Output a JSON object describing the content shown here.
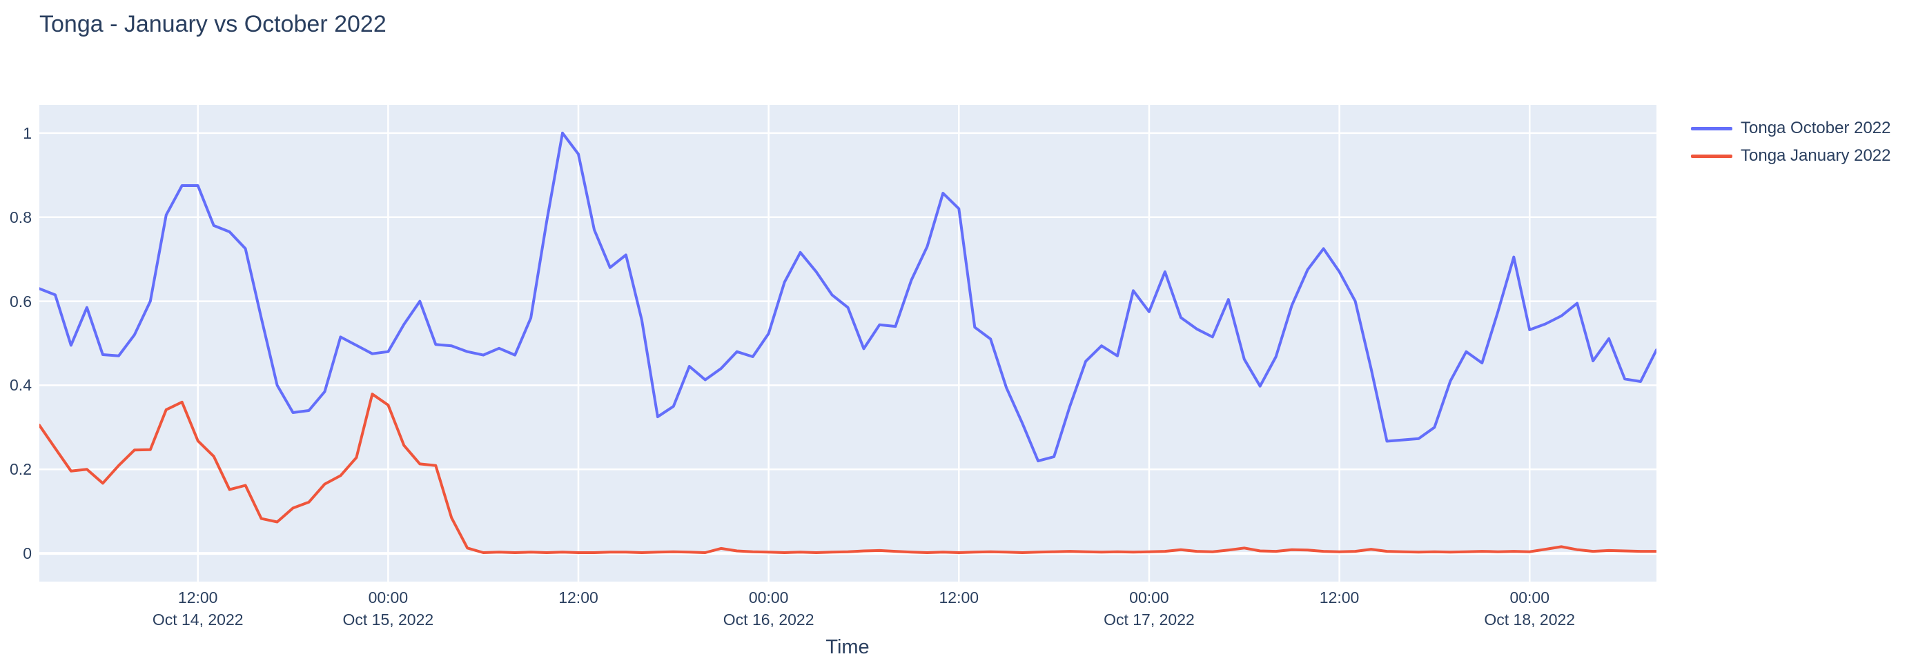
{
  "page": {
    "title": "Tonga - January vs October 2022"
  },
  "colors": {
    "october_line": "#636EFA",
    "january_line": "#EF553B",
    "plot_bg": "#E5ECF6",
    "grid": "#FFFFFF",
    "text": "#2A3F5F",
    "paper_bg": "#FFFFFF"
  },
  "legend": {
    "items": [
      {
        "label": "Tonga October 2022",
        "color": "#636EFA"
      },
      {
        "label": "Tonga January 2022",
        "color": "#EF553B"
      }
    ]
  },
  "x_axis": {
    "title": "Time",
    "ticks": [
      {
        "hour": 10,
        "time": "12:00",
        "date": "Oct 14, 2022"
      },
      {
        "hour": 22,
        "time": "00:00",
        "date": "Oct 15, 2022"
      },
      {
        "hour": 34,
        "time": "12:00",
        "date": ""
      },
      {
        "hour": 46,
        "time": "00:00",
        "date": "Oct 16, 2022"
      },
      {
        "hour": 58,
        "time": "12:00",
        "date": ""
      },
      {
        "hour": 70,
        "time": "00:00",
        "date": "Oct 17, 2022"
      },
      {
        "hour": 82,
        "time": "12:00",
        "date": ""
      },
      {
        "hour": 94,
        "time": "00:00",
        "date": "Oct 18, 2022"
      }
    ]
  },
  "y_axis": {
    "ticks": [
      {
        "label": "0",
        "value": 0
      },
      {
        "label": "0.2",
        "value": 0.2
      },
      {
        "label": "0.4",
        "value": 0.4
      },
      {
        "label": "0.6",
        "value": 0.6
      },
      {
        "label": "0.8",
        "value": 0.8
      },
      {
        "label": "1",
        "value": 1
      }
    ]
  },
  "chart_data": {
    "type": "line",
    "title": "Tonga - January vs October 2022",
    "xlabel": "Time",
    "ylabel": "",
    "grid": true,
    "legend_position": "right",
    "x_start": "2022-10-14 02:00",
    "x_step_hours": 1,
    "x_total_hours": 102,
    "ylim": [
      -0.067,
      1.067
    ],
    "series": [
      {
        "name": "Tonga October 2022",
        "color": "#636EFA",
        "values": [
          0.63,
          0.615,
          0.495,
          0.585,
          0.473,
          0.47,
          0.52,
          0.6,
          0.805,
          0.875,
          0.875,
          0.78,
          0.765,
          0.725,
          0.56,
          0.4,
          0.335,
          0.34,
          0.385,
          0.515,
          0.495,
          0.475,
          0.48,
          0.545,
          0.6,
          0.497,
          0.494,
          0.48,
          0.472,
          0.488,
          0.472,
          0.56,
          0.79,
          1.0,
          0.95,
          0.77,
          0.68,
          0.71,
          0.555,
          0.325,
          0.35,
          0.445,
          0.413,
          0.44,
          0.48,
          0.468,
          0.523,
          0.645,
          0.716,
          0.67,
          0.615,
          0.585,
          0.487,
          0.544,
          0.54,
          0.65,
          0.73,
          0.857,
          0.82,
          0.538,
          0.51,
          0.394,
          0.31,
          0.22,
          0.23,
          0.35,
          0.457,
          0.494,
          0.47,
          0.625,
          0.575,
          0.67,
          0.561,
          0.534,
          0.515,
          0.604,
          0.462,
          0.398,
          0.468,
          0.59,
          0.675,
          0.725,
          0.67,
          0.6,
          0.44,
          0.267,
          0.27,
          0.273,
          0.3,
          0.41,
          0.48,
          0.453,
          0.575,
          0.705,
          0.532,
          0.546,
          0.565,
          0.595,
          0.458,
          0.511,
          0.415,
          0.409,
          0.484
        ]
      },
      {
        "name": "Tonga January 2022",
        "color": "#EF553B",
        "values": [
          0.305,
          0.25,
          0.196,
          0.2,
          0.167,
          0.209,
          0.246,
          0.247,
          0.342,
          0.36,
          0.268,
          0.231,
          0.152,
          0.162,
          0.083,
          0.075,
          0.108,
          0.122,
          0.165,
          0.185,
          0.228,
          0.379,
          0.353,
          0.257,
          0.213,
          0.209,
          0.085,
          0.013,
          0.002,
          0.003,
          0.002,
          0.003,
          0.002,
          0.003,
          0.002,
          0.002,
          0.003,
          0.003,
          0.002,
          0.003,
          0.004,
          0.003,
          0.002,
          0.012,
          0.006,
          0.004,
          0.003,
          0.002,
          0.003,
          0.002,
          0.003,
          0.004,
          0.006,
          0.007,
          0.005,
          0.003,
          0.002,
          0.003,
          0.002,
          0.003,
          0.004,
          0.003,
          0.002,
          0.003,
          0.004,
          0.005,
          0.004,
          0.003,
          0.004,
          0.003,
          0.004,
          0.005,
          0.009,
          0.005,
          0.004,
          0.008,
          0.013,
          0.006,
          0.005,
          0.009,
          0.008,
          0.005,
          0.004,
          0.005,
          0.01,
          0.005,
          0.004,
          0.003,
          0.004,
          0.003,
          0.004,
          0.005,
          0.004,
          0.005,
          0.004,
          0.01,
          0.016,
          0.009,
          0.005,
          0.007,
          0.006,
          0.005,
          0.005
        ]
      }
    ]
  }
}
